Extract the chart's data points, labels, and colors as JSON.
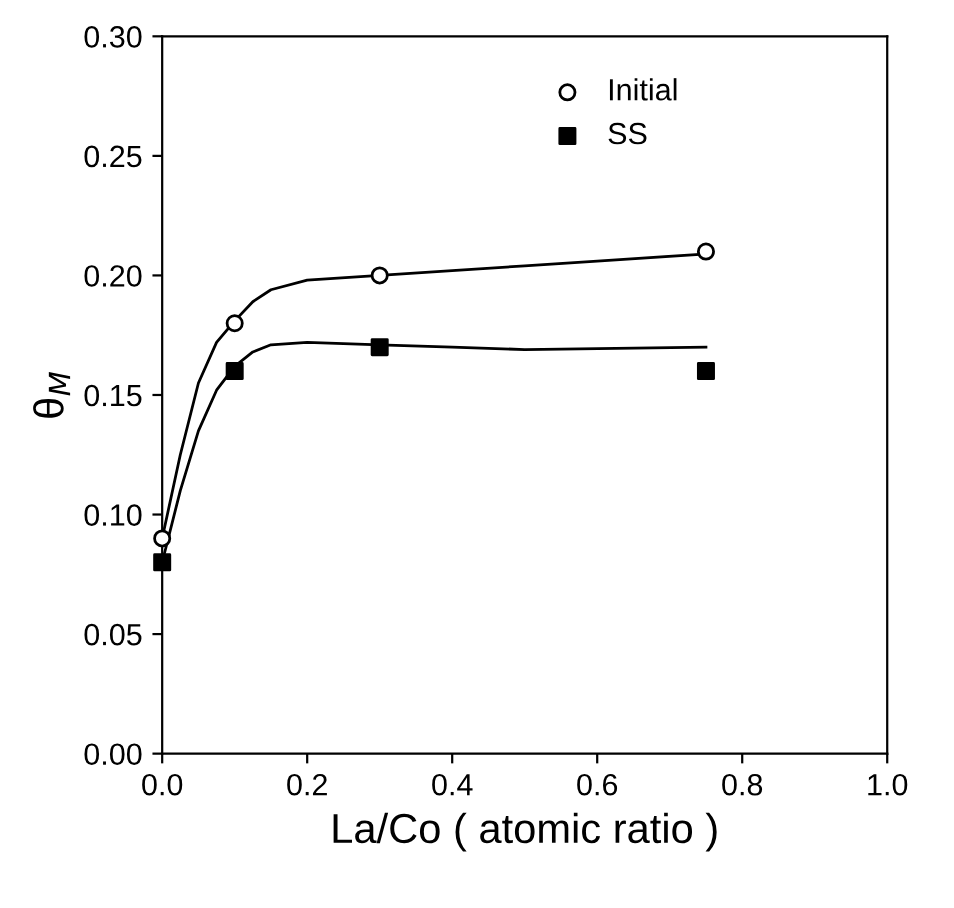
{
  "chart_data": {
    "type": "scatter",
    "xlabel": "La/Co ( atomic ratio )",
    "ylabel": "θ$_{M}$",
    "xlim": [
      0,
      1
    ],
    "ylim": [
      0,
      0.3
    ],
    "xticks": [
      {
        "value": 0,
        "label": "0.0"
      },
      {
        "value": 0.2,
        "label": "0.2"
      },
      {
        "value": 0.4,
        "label": "0.4"
      },
      {
        "value": 0.6,
        "label": "0.6"
      },
      {
        "value": 0.8,
        "label": "0.8"
      },
      {
        "value": 1,
        "label": "1.0"
      }
    ],
    "yticks": [
      {
        "value": 0,
        "label": "0.00"
      },
      {
        "value": 0.05,
        "label": "0.05"
      },
      {
        "value": 0.1,
        "label": "0.10"
      },
      {
        "value": 0.15,
        "label": "0.15"
      },
      {
        "value": 0.2,
        "label": "0.20"
      },
      {
        "value": 0.25,
        "label": "0.25"
      },
      {
        "value": 0.3,
        "label": "0.30"
      }
    ],
    "grid": false,
    "legend": "top right",
    "series": [
      {
        "name": "Initial",
        "marker": "circle",
        "color": "#000000",
        "x": [
          0,
          0.1,
          0.3,
          0.75
        ],
        "values": [
          0.09,
          0.18,
          0.2,
          0.21
        ]
      },
      {
        "name": "SS",
        "marker": "square",
        "color": "#000000",
        "x": [
          0,
          0.1,
          0.3,
          0.75
        ],
        "values": [
          0.08,
          0.16,
          0.17,
          0.16
        ]
      },
      {
        "type": "line",
        "marker": "none",
        "color": "#000000",
        "x": [
          0,
          0.025,
          0.05,
          0.075,
          0.1,
          0.125,
          0.15,
          0.2,
          0.3,
          0.4,
          0.5,
          0.6,
          0.75
        ],
        "values": [
          0.09,
          0.125,
          0.155,
          0.172,
          0.181,
          0.189,
          0.194,
          0.198,
          0.2,
          0.202,
          0.204,
          0.206,
          0.209
        ]
      },
      {
        "type": "line",
        "marker": "none",
        "color": "#000000",
        "x": [
          0,
          0.025,
          0.05,
          0.075,
          0.1,
          0.125,
          0.15,
          0.2,
          0.3,
          0.4,
          0.5,
          0.75
        ],
        "values": [
          0.08,
          0.11,
          0.135,
          0.152,
          0.162,
          0.168,
          0.171,
          0.172,
          0.171,
          0.17,
          0.169,
          0.17
        ]
      }
    ]
  }
}
